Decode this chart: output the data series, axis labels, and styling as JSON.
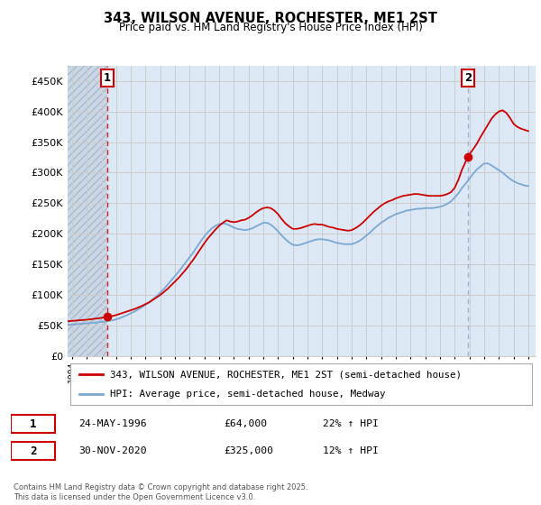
{
  "title": "343, WILSON AVENUE, ROCHESTER, ME1 2ST",
  "subtitle": "Price paid vs. HM Land Registry's House Price Index (HPI)",
  "legend_line1": "343, WILSON AVENUE, ROCHESTER, ME1 2ST (semi-detached house)",
  "legend_line2": "HPI: Average price, semi-detached house, Medway",
  "annotation1_label": "1",
  "annotation1_date": "24-MAY-1996",
  "annotation1_price": "£64,000",
  "annotation1_hpi": "22% ↑ HPI",
  "annotation2_label": "2",
  "annotation2_date": "30-NOV-2020",
  "annotation2_price": "£325,000",
  "annotation2_hpi": "12% ↑ HPI",
  "footnote": "Contains HM Land Registry data © Crown copyright and database right 2025.\nThis data is licensed under the Open Government Licence v3.0.",
  "red_line_color": "#cc0000",
  "blue_line_color": "#7aa8d2",
  "marker_color": "#cc0000",
  "annotation_box_color": "#cc0000",
  "vline1_color": "#cc0000",
  "vline2_color": "#99aacc",
  "grid_color": "#cccccc",
  "bg_color": "#ffffff",
  "plot_bg_color": "#dce8f5",
  "hatch_bg_color": "#c8d8e8",
  "ylim": [
    0,
    475000
  ],
  "ytick_values": [
    0,
    50000,
    100000,
    150000,
    200000,
    250000,
    300000,
    350000,
    400000,
    450000
  ],
  "ytick_labels": [
    "£0",
    "£50K",
    "£100K",
    "£150K",
    "£200K",
    "£250K",
    "£300K",
    "£350K",
    "£400K",
    "£450K"
  ],
  "xlim_start": 1993.7,
  "xlim_end": 2025.5,
  "hatch_end_year": 1996.42,
  "sale1_year": 1996.39,
  "sale2_year": 2020.92,
  "sale1_price": 64000,
  "sale2_price": 325000,
  "red_x": [
    1993.75,
    1994.0,
    1994.25,
    1994.5,
    1994.75,
    1995.0,
    1995.25,
    1995.5,
    1995.75,
    1996.0,
    1996.25,
    1996.42,
    1996.5,
    1996.75,
    1997.0,
    1997.25,
    1997.5,
    1997.75,
    1998.0,
    1998.25,
    1998.5,
    1998.75,
    1999.0,
    1999.25,
    1999.5,
    1999.75,
    2000.0,
    2000.25,
    2000.5,
    2000.75,
    2001.0,
    2001.25,
    2001.5,
    2001.75,
    2002.0,
    2002.25,
    2002.5,
    2002.75,
    2003.0,
    2003.25,
    2003.5,
    2003.75,
    2004.0,
    2004.25,
    2004.5,
    2004.75,
    2005.0,
    2005.25,
    2005.5,
    2005.75,
    2006.0,
    2006.25,
    2006.5,
    2006.75,
    2007.0,
    2007.25,
    2007.5,
    2007.75,
    2008.0,
    2008.25,
    2008.5,
    2008.75,
    2009.0,
    2009.25,
    2009.5,
    2009.75,
    2010.0,
    2010.25,
    2010.5,
    2010.75,
    2011.0,
    2011.25,
    2011.5,
    2011.75,
    2012.0,
    2012.25,
    2012.5,
    2012.75,
    2013.0,
    2013.25,
    2013.5,
    2013.75,
    2014.0,
    2014.25,
    2014.5,
    2014.75,
    2015.0,
    2015.25,
    2015.5,
    2015.75,
    2016.0,
    2016.25,
    2016.5,
    2016.75,
    2017.0,
    2017.25,
    2017.5,
    2017.75,
    2018.0,
    2018.25,
    2018.5,
    2018.75,
    2019.0,
    2019.25,
    2019.5,
    2019.75,
    2020.0,
    2020.25,
    2020.5,
    2020.75,
    2020.92,
    2021.0,
    2021.25,
    2021.5,
    2021.75,
    2022.0,
    2022.25,
    2022.5,
    2022.75,
    2023.0,
    2023.25,
    2023.5,
    2023.75,
    2024.0,
    2024.25,
    2024.5,
    2024.75,
    2025.0
  ],
  "red_y": [
    57000,
    57500,
    58000,
    58500,
    59000,
    59500,
    60000,
    61000,
    61500,
    62500,
    63500,
    64000,
    64500,
    65500,
    67000,
    69000,
    71000,
    73000,
    75000,
    77000,
    79500,
    82000,
    85000,
    88000,
    92000,
    96000,
    100000,
    105000,
    110000,
    116000,
    122000,
    128000,
    135000,
    142000,
    150000,
    158000,
    167000,
    176000,
    185000,
    193000,
    200000,
    207000,
    213000,
    218000,
    222000,
    220000,
    219000,
    220000,
    222000,
    223000,
    226000,
    230000,
    235000,
    239000,
    242000,
    243000,
    242000,
    238000,
    232000,
    224000,
    217000,
    212000,
    208000,
    208000,
    209000,
    211000,
    213000,
    215000,
    216000,
    215000,
    215000,
    213000,
    211000,
    210000,
    208000,
    207000,
    206000,
    205000,
    206000,
    209000,
    213000,
    218000,
    224000,
    230000,
    236000,
    241000,
    246000,
    250000,
    253000,
    255000,
    258000,
    260000,
    262000,
    263000,
    264000,
    265000,
    265000,
    264000,
    263000,
    262000,
    262000,
    262000,
    262000,
    263000,
    265000,
    268000,
    275000,
    288000,
    305000,
    318000,
    325000,
    330000,
    338000,
    347000,
    358000,
    368000,
    378000,
    388000,
    395000,
    400000,
    402000,
    398000,
    390000,
    380000,
    375000,
    372000,
    370000,
    368000
  ],
  "blue_x": [
    1993.75,
    1994.0,
    1994.25,
    1994.5,
    1994.75,
    1995.0,
    1995.25,
    1995.5,
    1995.75,
    1996.0,
    1996.25,
    1996.5,
    1996.75,
    1997.0,
    1997.25,
    1997.5,
    1997.75,
    1998.0,
    1998.25,
    1998.5,
    1998.75,
    1999.0,
    1999.25,
    1999.5,
    1999.75,
    2000.0,
    2000.25,
    2000.5,
    2000.75,
    2001.0,
    2001.25,
    2001.5,
    2001.75,
    2002.0,
    2002.25,
    2002.5,
    2002.75,
    2003.0,
    2003.25,
    2003.5,
    2003.75,
    2004.0,
    2004.25,
    2004.5,
    2004.75,
    2005.0,
    2005.25,
    2005.5,
    2005.75,
    2006.0,
    2006.25,
    2006.5,
    2006.75,
    2007.0,
    2007.25,
    2007.5,
    2007.75,
    2008.0,
    2008.25,
    2008.5,
    2008.75,
    2009.0,
    2009.25,
    2009.5,
    2009.75,
    2010.0,
    2010.25,
    2010.5,
    2010.75,
    2011.0,
    2011.25,
    2011.5,
    2011.75,
    2012.0,
    2012.25,
    2012.5,
    2012.75,
    2013.0,
    2013.25,
    2013.5,
    2013.75,
    2014.0,
    2014.25,
    2014.5,
    2014.75,
    2015.0,
    2015.25,
    2015.5,
    2015.75,
    2016.0,
    2016.25,
    2016.5,
    2016.75,
    2017.0,
    2017.25,
    2017.5,
    2017.75,
    2018.0,
    2018.25,
    2018.5,
    2018.75,
    2019.0,
    2019.25,
    2019.5,
    2019.75,
    2020.0,
    2020.25,
    2020.5,
    2020.75,
    2021.0,
    2021.25,
    2021.5,
    2021.75,
    2022.0,
    2022.25,
    2022.5,
    2022.75,
    2023.0,
    2023.25,
    2023.5,
    2023.75,
    2024.0,
    2024.25,
    2024.5,
    2024.75,
    2025.0
  ],
  "blue_y": [
    51000,
    51500,
    52000,
    52500,
    53000,
    53500,
    54000,
    54500,
    55000,
    55800,
    56500,
    57500,
    58500,
    60000,
    62000,
    64500,
    67000,
    70000,
    73000,
    76500,
    80000,
    84000,
    88000,
    93000,
    98000,
    104000,
    110000,
    117000,
    124000,
    131000,
    138000,
    146000,
    154000,
    162000,
    170000,
    179000,
    188000,
    196000,
    203000,
    209000,
    213000,
    216000,
    217000,
    216000,
    213000,
    210000,
    208000,
    207000,
    206000,
    207000,
    209000,
    212000,
    215000,
    218000,
    218000,
    215000,
    210000,
    204000,
    197000,
    191000,
    186000,
    182000,
    181000,
    182000,
    184000,
    186000,
    188000,
    190000,
    191000,
    191000,
    190000,
    189000,
    187000,
    185000,
    184000,
    183000,
    183000,
    183000,
    185000,
    188000,
    192000,
    197000,
    202000,
    208000,
    213000,
    218000,
    222000,
    226000,
    229000,
    232000,
    234000,
    236000,
    238000,
    239000,
    240000,
    241000,
    241000,
    242000,
    242000,
    242000,
    243000,
    244000,
    246000,
    249000,
    253000,
    259000,
    266000,
    275000,
    282000,
    290000,
    298000,
    305000,
    310000,
    315000,
    315000,
    312000,
    308000,
    304000,
    300000,
    295000,
    290000,
    286000,
    283000,
    281000,
    279000,
    278000
  ]
}
